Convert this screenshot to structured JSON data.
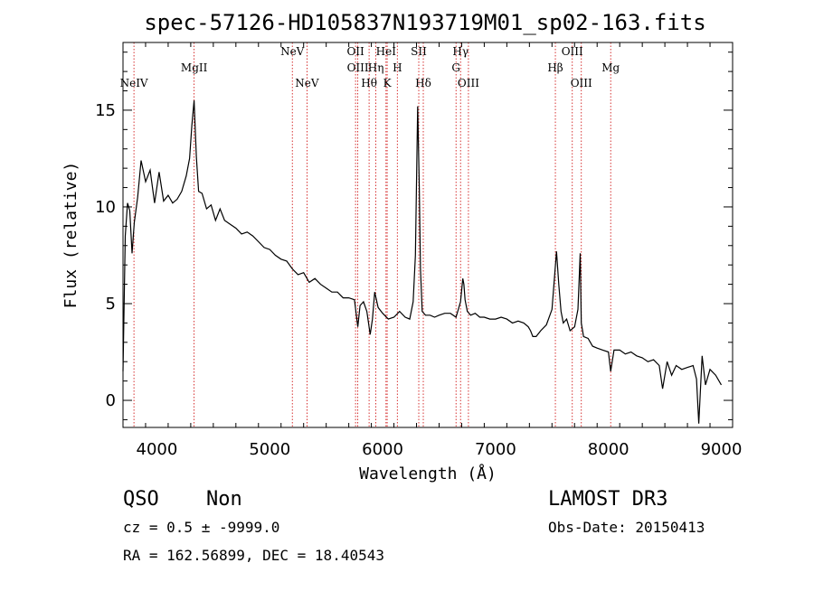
{
  "chart_data": {
    "type": "line",
    "title": "spec-57126-HD105837N193719M01_sp02-163.fits",
    "xlabel": "Wavelength (Å)",
    "ylabel": "Flux (relative)",
    "xlim": [
      3700,
      9100
    ],
    "ylim": [
      -1.4,
      18.5
    ],
    "x_ticks": [
      4000,
      5000,
      6000,
      7000,
      8000,
      9000
    ],
    "x_tick_labels": [
      "4000",
      "5000",
      "6000",
      "7000",
      "8000",
      "9000"
    ],
    "y_ticks": [
      0,
      5,
      10,
      15
    ],
    "y_tick_labels": [
      "0",
      "5",
      "10",
      "15"
    ],
    "line_color": "#000000",
    "marker_color": "#cc0000",
    "series": [
      {
        "name": "flux",
        "x": [
          3700,
          3720,
          3740,
          3760,
          3780,
          3800,
          3830,
          3860,
          3900,
          3940,
          3980,
          4020,
          4060,
          4100,
          4140,
          4180,
          4220,
          4260,
          4290,
          4310,
          4330,
          4350,
          4370,
          4400,
          4440,
          4480,
          4520,
          4560,
          4600,
          4650,
          4700,
          4750,
          4800,
          4850,
          4900,
          4950,
          5000,
          5050,
          5100,
          5150,
          5200,
          5250,
          5300,
          5350,
          5400,
          5450,
          5500,
          5550,
          5600,
          5650,
          5700,
          5750,
          5780,
          5800,
          5830,
          5860,
          5890,
          5910,
          5930,
          5960,
          6000,
          6050,
          6100,
          6150,
          6200,
          6240,
          6270,
          6290,
          6310,
          6325,
          6335,
          6350,
          6380,
          6420,
          6460,
          6500,
          6550,
          6600,
          6650,
          6690,
          6710,
          6720,
          6730,
          6750,
          6780,
          6820,
          6860,
          6900,
          6950,
          7000,
          7050,
          7100,
          7150,
          7200,
          7250,
          7290,
          7310,
          7330,
          7360,
          7400,
          7450,
          7500,
          7520,
          7540,
          7560,
          7580,
          7600,
          7630,
          7660,
          7700,
          7730,
          7750,
          7760,
          7780,
          7820,
          7860,
          7900,
          7950,
          8000,
          8020,
          8050,
          8100,
          8150,
          8200,
          8250,
          8300,
          8350,
          8400,
          8450,
          8480,
          8520,
          8560,
          8600,
          8650,
          8700,
          8750,
          8780,
          8800,
          8830,
          8860,
          8900,
          8950,
          9000
        ],
        "y": [
          1.5,
          8.5,
          10.2,
          9.8,
          7.6,
          9.2,
          10.5,
          12.4,
          11.3,
          11.9,
          10.2,
          11.8,
          10.3,
          10.6,
          10.2,
          10.4,
          10.8,
          11.6,
          12.5,
          14.2,
          15.5,
          12.6,
          10.8,
          10.7,
          9.9,
          10.1,
          9.3,
          9.9,
          9.3,
          9.1,
          8.9,
          8.6,
          8.7,
          8.5,
          8.2,
          7.9,
          7.8,
          7.5,
          7.3,
          7.2,
          6.8,
          6.5,
          6.6,
          6.1,
          6.3,
          6.0,
          5.8,
          5.6,
          5.6,
          5.3,
          5.3,
          5.2,
          3.8,
          4.9,
          5.1,
          4.6,
          3.4,
          4.2,
          5.6,
          4.8,
          4.5,
          4.2,
          4.3,
          4.6,
          4.3,
          4.2,
          5.1,
          7.5,
          15.2,
          11.0,
          6.8,
          4.6,
          4.4,
          4.4,
          4.3,
          4.4,
          4.5,
          4.5,
          4.3,
          5.1,
          6.3,
          6.0,
          5.2,
          4.6,
          4.4,
          4.5,
          4.3,
          4.3,
          4.2,
          4.2,
          4.3,
          4.2,
          4.0,
          4.1,
          4.0,
          3.8,
          3.6,
          3.3,
          3.3,
          3.6,
          3.9,
          4.7,
          6.2,
          7.7,
          6.0,
          4.6,
          4.0,
          4.2,
          3.6,
          3.8,
          4.7,
          7.6,
          4.0,
          3.3,
          3.2,
          2.8,
          2.7,
          2.6,
          2.5,
          1.5,
          2.6,
          2.6,
          2.4,
          2.5,
          2.3,
          2.2,
          2.0,
          2.1,
          1.8,
          0.6,
          2.0,
          1.3,
          1.8,
          1.6,
          1.7,
          1.8,
          1.1,
          -1.2,
          2.3,
          0.8,
          1.6,
          1.3,
          0.8
        ]
      }
    ],
    "lines": [
      {
        "label": "NeIV",
        "x": 3797,
        "row": 2,
        "dx": 0
      },
      {
        "label": "MgII",
        "x": 4330,
        "row": 1,
        "dx": 0
      },
      {
        "label": "NeV",
        "x": 5200,
        "row": 0,
        "dx": 0
      },
      {
        "label": "NeV",
        "x": 5330,
        "row": 2,
        "dx": 0
      },
      {
        "label": "OII",
        "x": 5760,
        "row": 0,
        "dx": 0
      },
      {
        "label": "OIII",
        "x": 5780,
        "row": 1,
        "dx": 0
      },
      {
        "label": "Hθ",
        "x": 5880,
        "row": 2,
        "dx": 0
      },
      {
        "label": "Hη",
        "x": 5940,
        "row": 1,
        "dx": 0
      },
      {
        "label": "HeI",
        "x": 6030,
        "row": 0,
        "dx": 0
      },
      {
        "label": "K",
        "x": 6040,
        "row": 2,
        "dx": 0
      },
      {
        "label": "H",
        "x": 6130,
        "row": 1,
        "dx": 0
      },
      {
        "label": "SII",
        "x": 6320,
        "row": 0,
        "dx": 0
      },
      {
        "label": "Hδ",
        "x": 6360,
        "row": 2,
        "dx": 0
      },
      {
        "label": "Hγ",
        "x": 6690,
        "row": 0,
        "dx": 0
      },
      {
        "label": "G",
        "x": 6650,
        "row": 1,
        "dx": 0
      },
      {
        "label": "OIII",
        "x": 6760,
        "row": 2,
        "dx": 0
      },
      {
        "label": "Hβ",
        "x": 7530,
        "row": 1,
        "dx": 0
      },
      {
        "label": "OIII",
        "x": 7680,
        "row": 0,
        "dx": 0
      },
      {
        "label": "OIII",
        "x": 7760,
        "row": 2,
        "dx": 0
      },
      {
        "label": "Mg",
        "x": 8020,
        "row": 1,
        "dx": 0
      }
    ]
  },
  "info": {
    "object_class": "QSO",
    "subclass": "Non",
    "survey": "LAMOST DR3",
    "redshift": "cz = 0.5 ± -9999.0",
    "obs_date": "Obs-Date: 20150413",
    "coords": "RA = 162.56899, DEC =  18.40543"
  }
}
